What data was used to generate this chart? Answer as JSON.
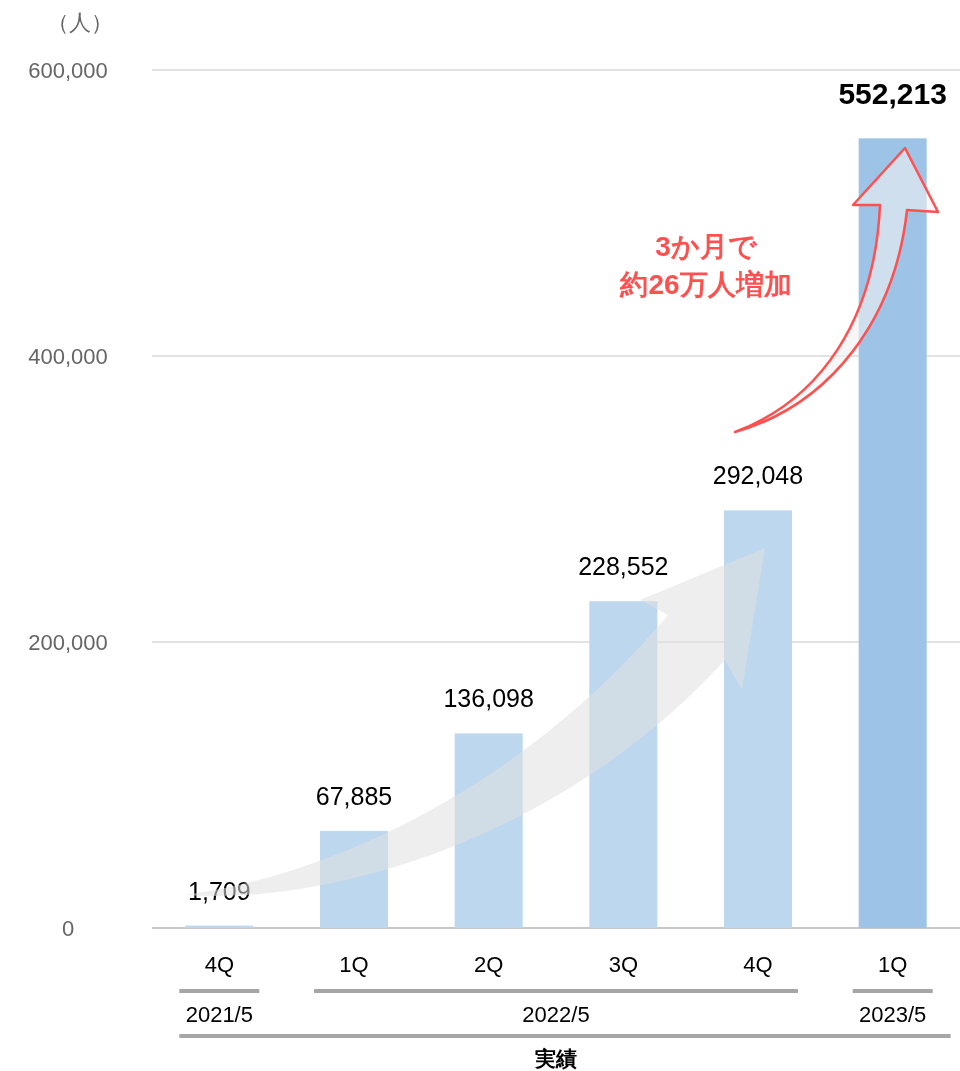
{
  "chart_data": {
    "type": "bar",
    "ylabel": "（人）",
    "categories": [
      "4Q",
      "1Q",
      "2Q",
      "3Q",
      "4Q",
      "1Q"
    ],
    "values": [
      1709,
      67885,
      136098,
      228552,
      292048,
      552213
    ],
    "colors": [
      "#bdd7ee",
      "#bdd7ee",
      "#bdd7ee",
      "#bdd7ee",
      "#bdd7ee",
      "#9dc3e6"
    ],
    "ylim": [
      0,
      600000
    ],
    "yticks": [
      0,
      {
        "value": 200000,
        "label": "200,000"
      },
      {
        "value": 400000,
        "label": "400,000"
      },
      {
        "value": 600000,
        "label": "600,000"
      }
    ],
    "grid": "y",
    "value_labels": [
      "1,709",
      "67,885",
      "136,098",
      "228,552",
      "292,048",
      "552,213"
    ],
    "annotations": [
      "2021/5",
      "2022/5",
      "2023/5",
      "実績",
      "3か月で",
      "約26万人増加"
    ]
  }
}
